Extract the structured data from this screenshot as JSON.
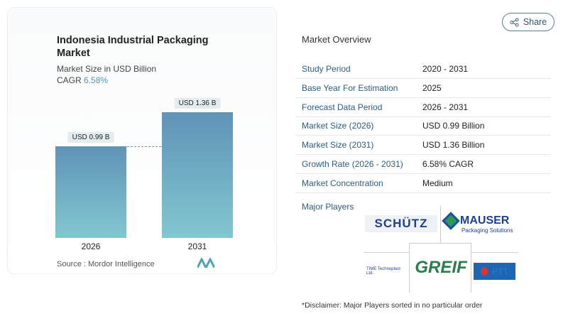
{
  "header": {
    "share_label": "Share",
    "share_icon": "share-icon"
  },
  "chart_card": {
    "title": "Indonesia Industrial Packaging Market",
    "subtitle": "Market Size in USD Billion",
    "cagr_label": "CAGR",
    "cagr_value": "6.58%",
    "source": "Source :  Mordor Intelligence"
  },
  "chart_data": {
    "type": "bar",
    "categories": [
      "2026",
      "2031"
    ],
    "values": [
      0.99,
      1.36
    ],
    "data_labels": [
      "USD 0.99 B",
      "USD 1.36 B"
    ],
    "ylabel": "Market Size in USD Billion",
    "reference_line": 0.99,
    "colors": {
      "bar_top": "#5f93b8",
      "bar_bottom": "#82c7cf"
    }
  },
  "overview": {
    "title": "Market Overview",
    "rows": [
      {
        "label": "Study Period",
        "value": "2020 - 2031"
      },
      {
        "label": "Base Year For Estimation",
        "value": "2025"
      },
      {
        "label": "Forecast Data Period",
        "value": "2026 - 2031"
      },
      {
        "label": "Market Size (2026)",
        "value": "USD 0.99 Billion"
      },
      {
        "label": "Market Size (2031)",
        "value": "USD 1.36 Billion"
      },
      {
        "label": "Growth Rate (2026 - 2031)",
        "value": "6.58% CAGR"
      },
      {
        "label": "Market Concentration",
        "value": "Medium"
      }
    ],
    "major_players_label": "Major Players",
    "players": [
      "SCHÜTZ",
      "MAUSER Packaging Solutions",
      "TIME Technoplast Ltd.",
      "GREIF",
      "PTT"
    ],
    "disclaimer": "*Disclaimer: Major Players sorted in no particular order"
  }
}
